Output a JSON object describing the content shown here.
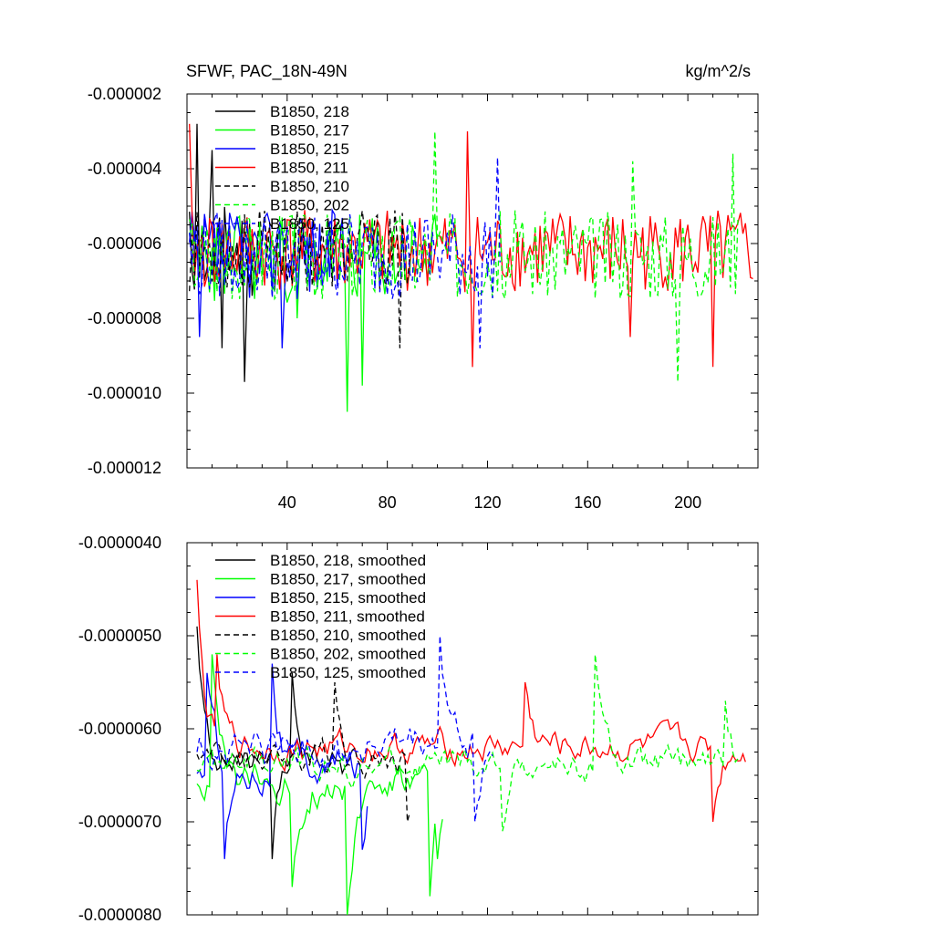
{
  "chart_data": [
    {
      "type": "line",
      "title": "SFWF, PAC_18N-49N",
      "units": "kg/m^2/s",
      "xlim": [
        0,
        228
      ],
      "ylim": [
        -1.2e-05,
        -2e-06
      ],
      "xticks": [
        40,
        80,
        120,
        160,
        200
      ],
      "xtick_labels": [
        "40",
        "80",
        "120",
        "160",
        "200"
      ],
      "yticks": [
        -1.2e-05,
        -1e-05,
        -8e-06,
        -6e-06,
        -4e-06,
        -2e-06
      ],
      "ytick_labels": [
        "-0.000012",
        "-0.000010",
        "-0.000008",
        "-0.000006",
        "-0.000004",
        "-0.000002"
      ],
      "legend_position": "top-left",
      "series": [
        {
          "name": "B1850, 218",
          "color": "#000000",
          "dash": "solid",
          "x_start": 1,
          "x_end": 30,
          "mean": -6.2e-06,
          "spread": 1.3e-06,
          "seed": 11,
          "spikes": [
            [
              4,
              -2.8e-06
            ],
            [
              10,
              -3.5e-06
            ],
            [
              23,
              -9.7e-06
            ],
            [
              14,
              -8.8e-06
            ]
          ]
        },
        {
          "name": "B1850, 217",
          "color": "#00ff00",
          "dash": "solid",
          "x_start": 1,
          "x_end": 100,
          "mean": -6.4e-06,
          "spread": 1.2e-06,
          "seed": 23,
          "spikes": [
            [
              64,
              -1.05e-05
            ],
            [
              70,
              -9.8e-06
            ],
            [
              44,
              -8e-06
            ]
          ]
        },
        {
          "name": "B1850, 215",
          "color": "#0000ff",
          "dash": "solid",
          "x_start": 1,
          "x_end": 63,
          "mean": -6.3e-06,
          "spread": 1.2e-06,
          "seed": 37,
          "spikes": [
            [
              5,
              -8.5e-06
            ],
            [
              38,
              -8.8e-06
            ]
          ]
        },
        {
          "name": "B1850, 211",
          "color": "#ff0000",
          "dash": "solid",
          "x_start": 1,
          "x_end": 226,
          "mean": -6.2e-06,
          "spread": 1.1e-06,
          "seed": 41,
          "spikes": [
            [
              1,
              -2.8e-06
            ],
            [
              112,
              -3e-06
            ],
            [
              114,
              -9.3e-06
            ],
            [
              210,
              -9.3e-06
            ],
            [
              177,
              -8.5e-06
            ]
          ]
        },
        {
          "name": "B1850, 210",
          "color": "#000000",
          "dash": "dash",
          "x_start": 1,
          "x_end": 89,
          "mean": -6.2e-06,
          "spread": 1.1e-06,
          "seed": 53,
          "spikes": [
            [
              85,
              -8.8e-06
            ]
          ]
        },
        {
          "name": "B1850, 202",
          "color": "#00ff00",
          "dash": "dash",
          "x_start": 1,
          "x_end": 220,
          "mean": -6.3e-06,
          "spread": 1.2e-06,
          "seed": 67,
          "spikes": [
            [
              99,
              -3e-06
            ],
            [
              178,
              -3.8e-06
            ],
            [
              196,
              -9.7e-06
            ],
            [
              218,
              -3.6e-06
            ]
          ]
        },
        {
          "name": "B1850, 125",
          "color": "#0000ff",
          "dash": "dash",
          "x_start": 1,
          "x_end": 125,
          "mean": -6.3e-06,
          "spread": 1.2e-06,
          "seed": 79,
          "spikes": [
            [
              124,
              -3.7e-06
            ],
            [
              117,
              -8.8e-06
            ]
          ]
        }
      ]
    },
    {
      "type": "line",
      "title": "",
      "xlim": [
        0,
        228
      ],
      "ylim": [
        -8e-06,
        -4e-06
      ],
      "xticks": [
        40,
        80,
        120,
        160,
        200
      ],
      "xtick_labels": [],
      "yticks": [
        -8e-06,
        -7e-06,
        -6e-06,
        -5e-06,
        -4e-06
      ],
      "ytick_labels": [
        "-0.0000080",
        "-0.0000070",
        "-0.0000060",
        "-0.0000050",
        "-0.0000040"
      ],
      "legend_position": "top-left",
      "series": [
        {
          "name": "B1850, 218, smoothed",
          "color": "#000000",
          "dash": "solid",
          "x_start": 4,
          "x_end": 65,
          "mean": -6.4e-06,
          "spread": 4e-07,
          "seed": 111,
          "spikes": [
            [
              4,
              -4.9e-06
            ],
            [
              34,
              -7.4e-06
            ],
            [
              42,
              -5.4e-06
            ]
          ]
        },
        {
          "name": "B1850, 217, smoothed",
          "color": "#00ff00",
          "dash": "solid",
          "x_start": 4,
          "x_end": 102,
          "mean": -6.6e-06,
          "spread": 5e-07,
          "seed": 123,
          "spikes": [
            [
              64,
              -8e-06
            ],
            [
              42,
              -7.7e-06
            ],
            [
              97,
              -7.8e-06
            ],
            [
              100,
              -7.4e-06
            ],
            [
              10,
              -5.2e-06
            ]
          ]
        },
        {
          "name": "B1850, 215, smoothed",
          "color": "#0000ff",
          "dash": "solid",
          "x_start": 4,
          "x_end": 72,
          "mean": -6.4e-06,
          "spread": 5e-07,
          "seed": 137,
          "spikes": [
            [
              15,
              -7.4e-06
            ],
            [
              70,
              -7.3e-06
            ],
            [
              34,
              -5.3e-06
            ],
            [
              8,
              -5.4e-06
            ]
          ]
        },
        {
          "name": "B1850, 211, smoothed",
          "color": "#ff0000",
          "dash": "solid",
          "x_start": 4,
          "x_end": 223,
          "mean": -6.2e-06,
          "spread": 4e-07,
          "seed": 141,
          "spikes": [
            [
              4,
              -4.4e-06
            ],
            [
              12,
              -5.2e-06
            ],
            [
              210,
              -7e-06
            ],
            [
              135,
              -5.5e-06
            ]
          ]
        },
        {
          "name": "B1850, 210, smoothed",
          "color": "#000000",
          "dash": "dash",
          "x_start": 4,
          "x_end": 89,
          "mean": -6.3e-06,
          "spread": 4e-07,
          "seed": 153,
          "spikes": [
            [
              59,
              -5.5e-06
            ],
            [
              88,
              -7e-06
            ]
          ]
        },
        {
          "name": "B1850, 202, smoothed",
          "color": "#00ff00",
          "dash": "dash",
          "x_start": 4,
          "x_end": 220,
          "mean": -6.4e-06,
          "spread": 4e-07,
          "seed": 167,
          "spikes": [
            [
              163,
              -5.2e-06
            ],
            [
              126,
              -7.1e-06
            ],
            [
              215,
              -5.7e-06
            ]
          ]
        },
        {
          "name": "B1850, 125, smoothed",
          "color": "#0000ff",
          "dash": "dash",
          "x_start": 4,
          "x_end": 122,
          "mean": -6.2e-06,
          "spread": 5e-07,
          "seed": 179,
          "spikes": [
            [
              101,
              -5e-06
            ],
            [
              115,
              -7e-06
            ]
          ]
        }
      ]
    }
  ]
}
